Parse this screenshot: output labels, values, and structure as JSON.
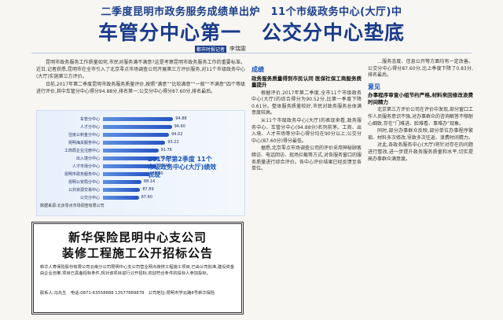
{
  "header": {
    "subtitle": "二季度昆明市政务服务成绩单出炉　11个市级政务中心(大厅)中",
    "title": "车管分中心第一　公交分中心垫底",
    "byline_tag": "都市时报记者",
    "byline_name": "李瑞雯"
  },
  "lead": [
    "昆明市政务服务工作质量如何,市民对服务满不满意?这是考察昆明市政务服务工作的重要标准。近日,记者获悉,昆明市在全市引入了北京零点市场调查公司开展第三方评价服务,对11个市级政务中心(大厅)实施第三方评价。",
    "日前,2017年第二季度昆明市政务服务质量评价,按照“满意”“比较满意”“一般”“不满意”四个等级进行评价,其中车管分中心得分94.88分,排名第一;公交分中心得分87.60分,排名最后。"
  ],
  "chart_data": {
    "type": "bar",
    "title": "2017年第2季度 11个市级政务中心(大厅)绩效表现",
    "categories": [
      "车管分中心",
      "人才分中心",
      "住房公积金分中心",
      "昆明海关服务中心",
      "工商局企业注册中心",
      "出入境分中心",
      "人才市场分中心",
      "昆明市政务服务中心",
      "昆明公安局分中心",
      "公共资源交易中心",
      "公交分中心"
    ],
    "values": [
      94.88,
      94.6,
      94.02,
      93.22,
      91.76,
      91.69,
      91.4,
      89.9,
      88.14,
      87.89,
      87.6
    ],
    "xlim": [
      80,
      96
    ],
    "source": "数据来源:北京零点市场调查有限公司"
  },
  "ad": {
    "title_line1": "新华保险昆明中心支公司",
    "title_line2": "装修工程施工公开招标公告",
    "body": "新华人寿保险股份有限公司云南分公司昆明中心支公司营业网点装修工程施工项目,已由公司批准,建设资金由企业自筹,项目已具备招标条件,现对该项目进行公开招标,欢迎符合条件的投标人参加投标。",
    "contact": "联系人:冯先生　电话:0871-63558888 13577889878　公司地址:昆明市学云路8号新华保险"
  },
  "col2": {
    "label": "成绩",
    "head": "政务服务质量得到市民认同 医保社保工商服务质量提升",
    "paras": [
      "根据评价,2017年第二季度,全市11个市级政务中心(大厅)的综合得分为90.52分,比第一季度下降0.61分。整体服务质量较好,市民对政务服务总体满意度较高。",
      "从11个市级政务中心(大厅)的表现来看,政务服务中心、车管分中心(94.88分)名列前茅。工商、出入境、人才市场等分中心得分均在90分以上;公交分中心(87.60分)得分最低。",
      "据悉,北京零点市场调查公司的评价采用神秘顾客暗访、电话回访、现场拦截等方式,对各服务窗口的服务质量进行综合评价。各中心评价结果已经反馈至各单位。"
    ]
  },
  "col3": {
    "paras_top": [
      "…服务态度、信息公开等方面均有一定改善。公交分中心得分87.60分,比上季度下降了0.83分,排名最后。"
    ],
    "label": "意见",
    "head": "办事程序审查小组节约严格,材料来回修改浪费时间精力",
    "paras": [
      "北京第三方评价公司在评价中发现,部分窗口工作人员服务意识不强,对办事群众的咨询解答不够耐心细致,存在“门难进、脸难看、事难办”现象。",
      "同时,部分办事群众反映,部分单位办事程序繁琐、材料多次修改,导致多次往返、浪费时间精力。",
      "对此,各政务服务中心(大厅)将针对存在的问题进行整改,进一步提升政务服务质量和水平,切实提高办事群众满意度。"
    ]
  }
}
